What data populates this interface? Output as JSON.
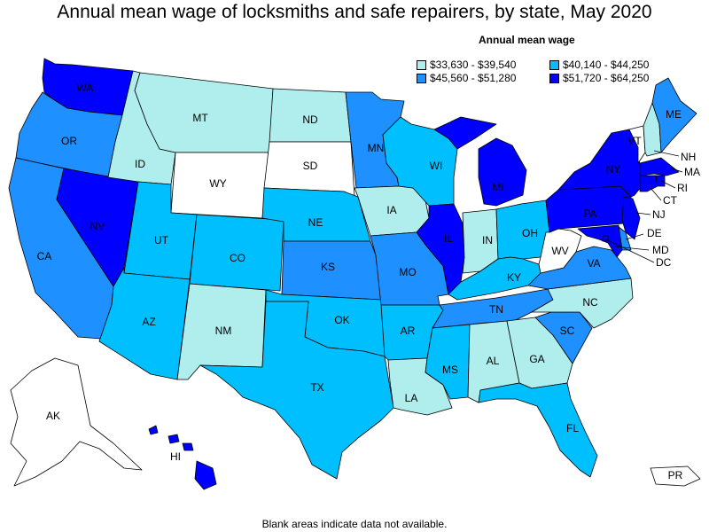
{
  "title": "Annual mean wage of locksmiths and safe repairers, by state, May 2020",
  "legend": {
    "title": "Annual mean wage",
    "items": [
      {
        "label": "$33,630 - $39,540",
        "color": "#b0eeee"
      },
      {
        "label": "$40,140 - $44,250",
        "color": "#00bfff"
      },
      {
        "label": "$45,560 - $51,280",
        "color": "#1e90ff"
      },
      {
        "label": "$51,720 - $64,250",
        "color": "#0000ff"
      }
    ]
  },
  "no_data_color": "#ffffff",
  "footnote": "Blank areas indicate data not available.",
  "states": [
    {
      "abbr": "WA",
      "class": 3
    },
    {
      "abbr": "OR",
      "class": 2
    },
    {
      "abbr": "CA",
      "class": 2
    },
    {
      "abbr": "NV",
      "class": 3
    },
    {
      "abbr": "ID",
      "class": 0
    },
    {
      "abbr": "MT",
      "class": 0
    },
    {
      "abbr": "WY",
      "class": null
    },
    {
      "abbr": "UT",
      "class": 1
    },
    {
      "abbr": "AZ",
      "class": 1
    },
    {
      "abbr": "CO",
      "class": 1
    },
    {
      "abbr": "NM",
      "class": 0
    },
    {
      "abbr": "ND",
      "class": 0
    },
    {
      "abbr": "SD",
      "class": null
    },
    {
      "abbr": "NE",
      "class": 1
    },
    {
      "abbr": "KS",
      "class": 2
    },
    {
      "abbr": "OK",
      "class": 1
    },
    {
      "abbr": "TX",
      "class": 1
    },
    {
      "abbr": "MN",
      "class": 2
    },
    {
      "abbr": "IA",
      "class": 0
    },
    {
      "abbr": "MO",
      "class": 2
    },
    {
      "abbr": "AR",
      "class": 1
    },
    {
      "abbr": "LA",
      "class": 0
    },
    {
      "abbr": "WI",
      "class": 1
    },
    {
      "abbr": "IL",
      "class": 3
    },
    {
      "abbr": "MI",
      "class": 3
    },
    {
      "abbr": "IN",
      "class": 0
    },
    {
      "abbr": "OH",
      "class": 1
    },
    {
      "abbr": "KY",
      "class": 1
    },
    {
      "abbr": "TN",
      "class": 2
    },
    {
      "abbr": "MS",
      "class": 1
    },
    {
      "abbr": "AL",
      "class": 0
    },
    {
      "abbr": "GA",
      "class": 0
    },
    {
      "abbr": "FL",
      "class": 1
    },
    {
      "abbr": "SC",
      "class": 2
    },
    {
      "abbr": "NC",
      "class": 0
    },
    {
      "abbr": "VA",
      "class": 2
    },
    {
      "abbr": "WV",
      "class": null
    },
    {
      "abbr": "PA",
      "class": 3
    },
    {
      "abbr": "NY",
      "class": 3
    },
    {
      "abbr": "VT",
      "class": null
    },
    {
      "abbr": "NH",
      "class": 0
    },
    {
      "abbr": "ME",
      "class": 2
    },
    {
      "abbr": "MA",
      "class": 3
    },
    {
      "abbr": "RI",
      "class": 3
    },
    {
      "abbr": "CT",
      "class": 3
    },
    {
      "abbr": "NJ",
      "class": 3
    },
    {
      "abbr": "DE",
      "class": 2
    },
    {
      "abbr": "MD",
      "class": 3
    },
    {
      "abbr": "DC",
      "class": 3
    },
    {
      "abbr": "AK",
      "class": null
    },
    {
      "abbr": "HI",
      "class": 3
    },
    {
      "abbr": "PR",
      "class": null
    }
  ]
}
